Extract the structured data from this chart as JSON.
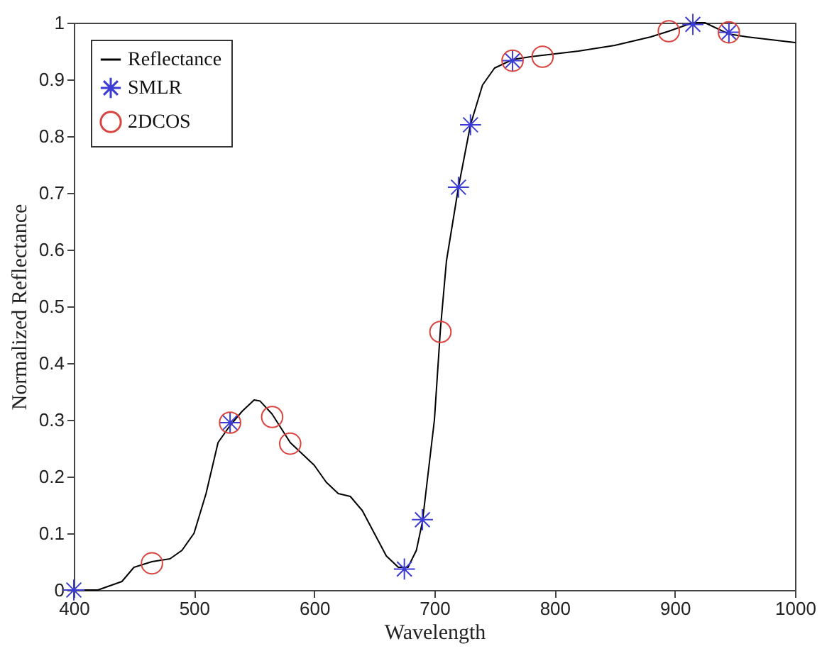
{
  "chart_data": {
    "type": "line",
    "xlabel": "Wavelength",
    "ylabel": "Normalized Reflectance",
    "xlim": [
      400,
      1000
    ],
    "ylim": [
      0,
      1
    ],
    "xticks": [
      400,
      500,
      600,
      700,
      800,
      900,
      1000
    ],
    "yticks": [
      0,
      0.1,
      0.2,
      0.3,
      0.4,
      0.5,
      0.6,
      0.7,
      0.8,
      0.9,
      1
    ],
    "grid": false,
    "legend": "top left",
    "series": [
      {
        "name": "Reflectance",
        "type": "line",
        "color": "#000000",
        "marker": "none",
        "line_style": "solid",
        "x": [
          400,
          420,
          440,
          450,
          465,
          480,
          490,
          500,
          510,
          520,
          530,
          540,
          550,
          555,
          565,
          580,
          590,
          600,
          610,
          620,
          630,
          640,
          650,
          660,
          670,
          678,
          685,
          690,
          700,
          705,
          710,
          720,
          730,
          740,
          750,
          765,
          780,
          800,
          820,
          850,
          880,
          895,
          915,
          925,
          945,
          960,
          1000
        ],
        "values": [
          0,
          0,
          0.015,
          0.04,
          0.05,
          0.055,
          0.07,
          0.1,
          0.17,
          0.26,
          0.29,
          0.315,
          0.335,
          0.333,
          0.31,
          0.26,
          0.24,
          0.22,
          0.19,
          0.17,
          0.165,
          0.14,
          0.1,
          0.06,
          0.04,
          0.04,
          0.07,
          0.12,
          0.3,
          0.46,
          0.58,
          0.71,
          0.82,
          0.89,
          0.92,
          0.935,
          0.94,
          0.945,
          0.95,
          0.96,
          0.975,
          0.985,
          1.0,
          1.0,
          0.98,
          0.975,
          0.965
        ]
      },
      {
        "name": "SMLR",
        "type": "scatter",
        "color": "#3b3bd6",
        "marker": "cross",
        "x": [
          400,
          530,
          675,
          690,
          720,
          730,
          765,
          915,
          945
        ],
        "values": [
          0,
          0.295,
          0.037,
          0.124,
          0.71,
          0.82,
          0.933,
          0.997,
          0.983
        ]
      },
      {
        "name": "2DCOS",
        "type": "scatter",
        "color": "#d9453e",
        "marker": "circle",
        "x": [
          465,
          530,
          565,
          580,
          705,
          765,
          790,
          895,
          945
        ],
        "values": [
          0.047,
          0.295,
          0.305,
          0.258,
          0.455,
          0.933,
          0.94,
          0.985,
          0.983
        ]
      }
    ]
  }
}
